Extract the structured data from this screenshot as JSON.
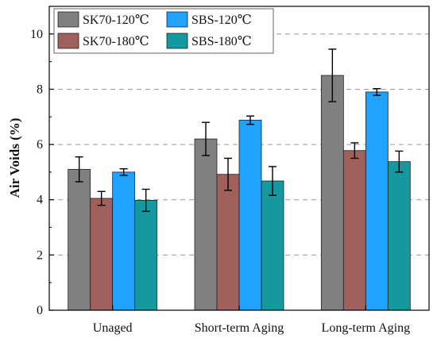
{
  "chart_data": {
    "type": "bar",
    "ylabel": "Air Voids (%)",
    "xlabel": "",
    "title": "",
    "ylim": [
      0,
      11
    ],
    "yticks": [
      0,
      2,
      4,
      6,
      8,
      10
    ],
    "grid": "horizontal dashed",
    "legend_position": "top-left",
    "categories": [
      "Unaged",
      "Short-term Aging",
      "Long-term Aging"
    ],
    "series": [
      {
        "name": "SK70-120℃",
        "color": "#808080",
        "values": [
          5.1,
          6.2,
          8.5
        ],
        "errors": [
          0.45,
          0.6,
          0.95
        ]
      },
      {
        "name": "SK70-180℃",
        "color": "#a0605c",
        "values": [
          4.05,
          4.92,
          5.78
        ],
        "errors": [
          0.25,
          0.58,
          0.28
        ]
      },
      {
        "name": "SBS-120℃",
        "color": "#1fa3ff",
        "values": [
          5.0,
          6.88,
          7.9
        ],
        "errors": [
          0.12,
          0.15,
          0.12
        ]
      },
      {
        "name": "SBS-180℃",
        "color": "#14999e",
        "values": [
          3.98,
          4.68,
          5.38
        ],
        "errors": [
          0.4,
          0.52,
          0.38
        ]
      }
    ]
  }
}
